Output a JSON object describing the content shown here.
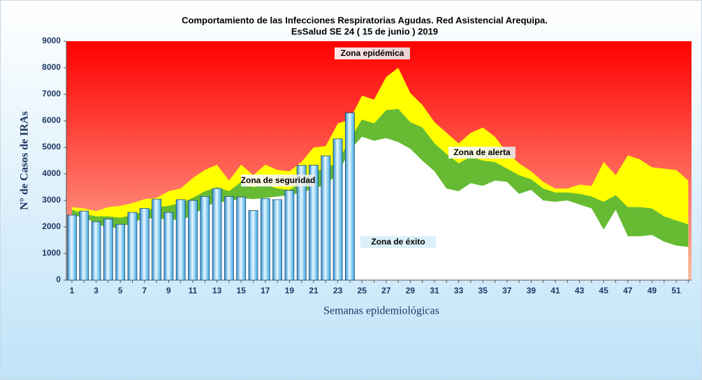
{
  "chart_data": {
    "type": "bar",
    "title": [
      "Comportamiento  de las Infecciones Respiratorias Agudas. Red Asistencial Arequipa.",
      "EsSalud SE 24 ( 15 de junio ) 2019"
    ],
    "y_label": "N° de Casos de IRAs",
    "x_label": "Semanas epidemiológicas",
    "categories": [
      1,
      null,
      3,
      null,
      5,
      null,
      7,
      null,
      9,
      null,
      11,
      null,
      13,
      null,
      15,
      null,
      17,
      null,
      19,
      null,
      21,
      null,
      23,
      null,
      25,
      null,
      27,
      null,
      29,
      null,
      31,
      null,
      33,
      null,
      35,
      null,
      37,
      null,
      39,
      null,
      41,
      null,
      43,
      null,
      45,
      null,
      47,
      null,
      49,
      null,
      51,
      null
    ],
    "values": [
      2450,
      2600,
      2200,
      2300,
      2100,
      2550,
      2700,
      3050,
      2550,
      3030,
      3000,
      3150,
      3450,
      3150,
      3130,
      2620,
      3070,
      3030,
      3380,
      4320,
      4330,
      4680,
      5320,
      6300,
      null,
      null,
      null,
      null,
      null,
      null,
      null,
      null,
      null,
      null,
      null,
      null,
      null,
      null,
      null,
      null,
      null,
      null,
      null,
      null,
      null,
      null,
      null,
      null,
      null,
      null,
      null,
      null
    ],
    "color": "#5bc8f0",
    "background_color": "#ff0000",
    "zones": [
      {
        "color": "#ffff00",
        "values": [
          2750,
          2700,
          2600,
          2750,
          2800,
          2900,
          3050,
          3100,
          3350,
          3450,
          3850,
          4150,
          4350,
          3750,
          4350,
          3950,
          4350,
          4150,
          4100,
          4450,
          5000,
          5050,
          5900,
          6050,
          6950,
          6800,
          7650,
          8000,
          7050,
          6600,
          5950,
          5550,
          5150,
          5550,
          5750,
          5400,
          4800,
          4400,
          4100,
          3700,
          3450,
          3450,
          3600,
          3550,
          4450,
          3950,
          4700,
          4550,
          4250,
          4200,
          4150,
          3750
        ]
      },
      {
        "color": "#66bb33",
        "values": [
          2650,
          2500,
          2400,
          2400,
          2350,
          2450,
          2600,
          2750,
          2800,
          2900,
          3100,
          3350,
          3500,
          3350,
          3700,
          3500,
          3600,
          3450,
          3400,
          3700,
          4100,
          4200,
          4450,
          5300,
          6050,
          5900,
          6400,
          6450,
          5950,
          5750,
          5150,
          4750,
          4400,
          4650,
          4500,
          4450,
          4200,
          3950,
          3800,
          3450,
          3300,
          3300,
          3250,
          3150,
          2950,
          3200,
          2750,
          2750,
          2700,
          2400,
          2250,
          2100
        ]
      },
      {
        "color": "#ffffff",
        "values": [
          2450,
          2350,
          2150,
          1950,
          2000,
          2150,
          2350,
          2300,
          2300,
          2250,
          2450,
          2750,
          2950,
          2950,
          3100,
          3050,
          3100,
          3150,
          3200,
          3300,
          3450,
          3600,
          4000,
          4900,
          5400,
          5250,
          5350,
          5200,
          4950,
          4500,
          4100,
          3450,
          3350,
          3650,
          3550,
          3750,
          3700,
          3250,
          3400,
          3000,
          2950,
          3000,
          2850,
          2700,
          1900,
          2650,
          1650,
          1650,
          1700,
          1450,
          1300,
          1250
        ]
      }
    ],
    "annotations": [
      "Zona epidémica",
      "Zona de alerta",
      "Zona de seguridad",
      "Zona de éxito"
    ],
    "ylim": [
      0,
      9000
    ],
    "yticks": [
      0,
      1000,
      2000,
      3000,
      4000,
      5000,
      6000,
      7000,
      8000,
      9000
    ]
  }
}
